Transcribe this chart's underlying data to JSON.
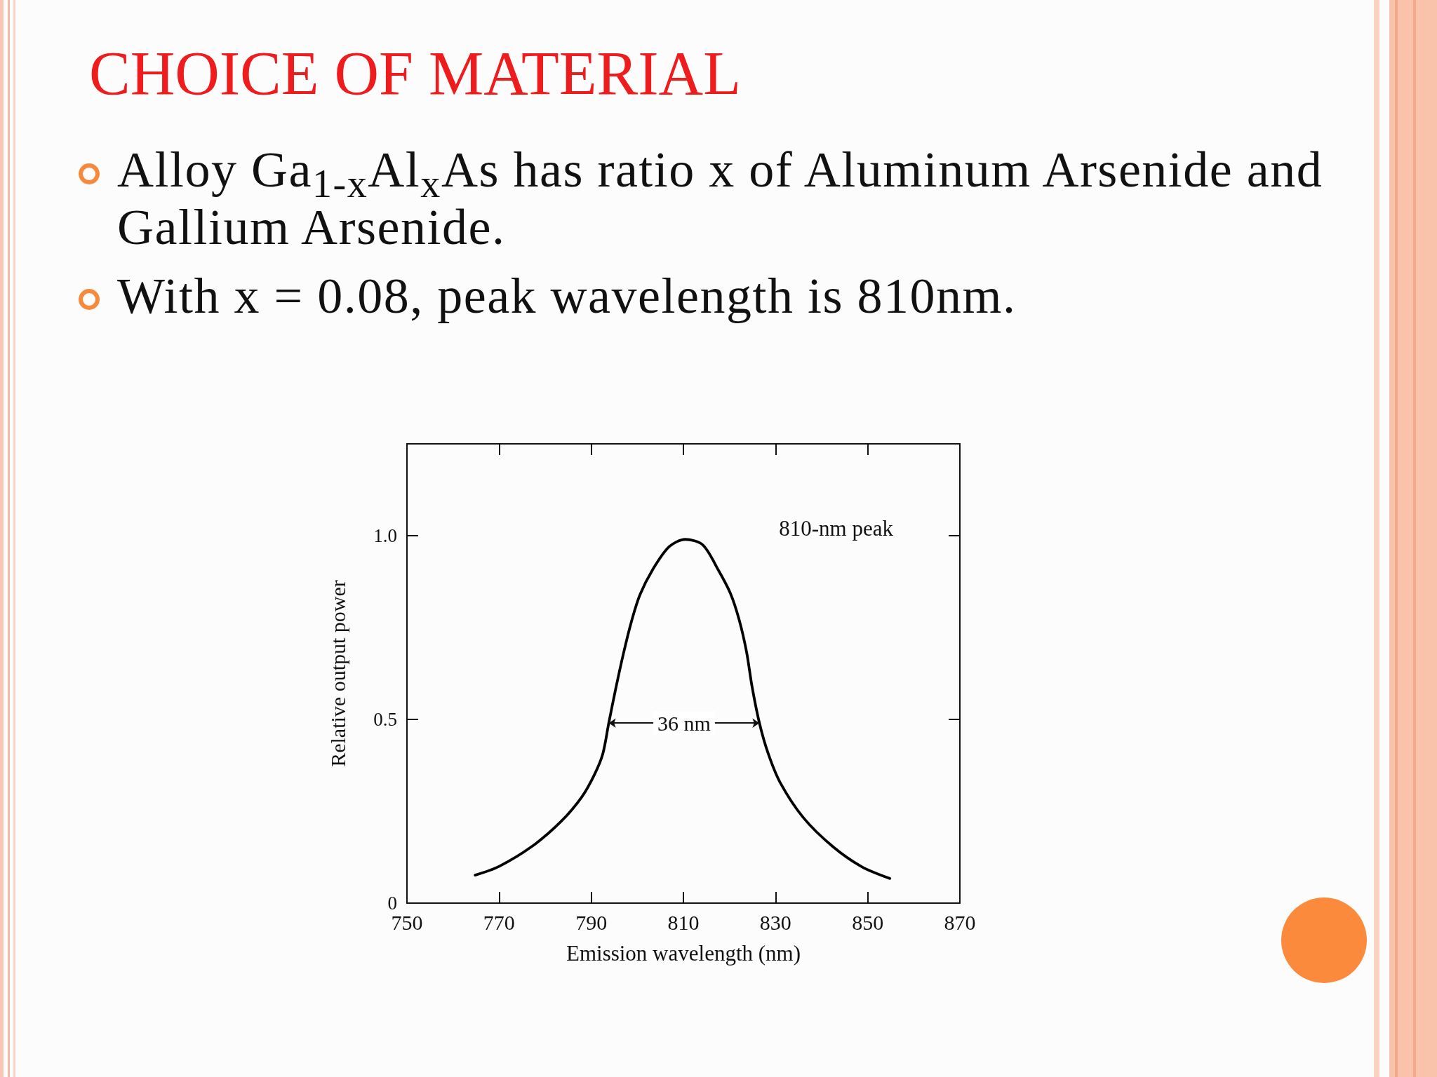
{
  "chart_data": {
    "type": "line",
    "title": "CHOICE OF MATERIAL",
    "annotations": [
      "Alloy Ga$_{1-x}$Al$_{x}$As has ratio x of Aluminum Arsenide and Gallium Arsenide.",
      "With x = 0.08, peak wavelength is 810nm.",
      {
        "text": "36 nm",
        "x": 793.8,
        "y": 0.49
      }
    ],
    "xlabel": "Emission wavelength (nm)",
    "ylabel": "Relative output power",
    "x": [
      764.8,
      770,
      777.2,
      783.5,
      788,
      790.7,
      792.5,
      793.8,
      795.2,
      797,
      798.8,
      800.6,
      803.3,
      806.9,
      810.4,
      814.2,
      817.6,
      820.2,
      822.1,
      823.7,
      824.9,
      826.5,
      828.4,
      831,
      836,
      842.4,
      848.7,
      854.8
    ],
    "series": [
      {
        "name": "810-nm peak",
        "color": "#000000",
        "values": [
          0.076,
          0.1,
          0.155,
          0.223,
          0.29,
          0.35,
          0.406,
          0.49,
          0.577,
          0.68,
          0.77,
          0.84,
          0.907,
          0.97,
          0.99,
          0.975,
          0.906,
          0.843,
          0.771,
          0.684,
          0.589,
          0.49,
          0.407,
          0.328,
          0.233,
          0.154,
          0.099,
          0.067
        ]
      }
    ],
    "xlim": [
      750,
      870
    ],
    "xticks": [
      750,
      770,
      790,
      810,
      830,
      850,
      870
    ],
    "ylim": [
      0,
      1.25
    ],
    "yticks": [
      0,
      0.5,
      {
        "value": 1,
        "label": "1.0"
      }
    ],
    "legend": "top right",
    "marker": "none",
    "line_style": "solid"
  }
}
